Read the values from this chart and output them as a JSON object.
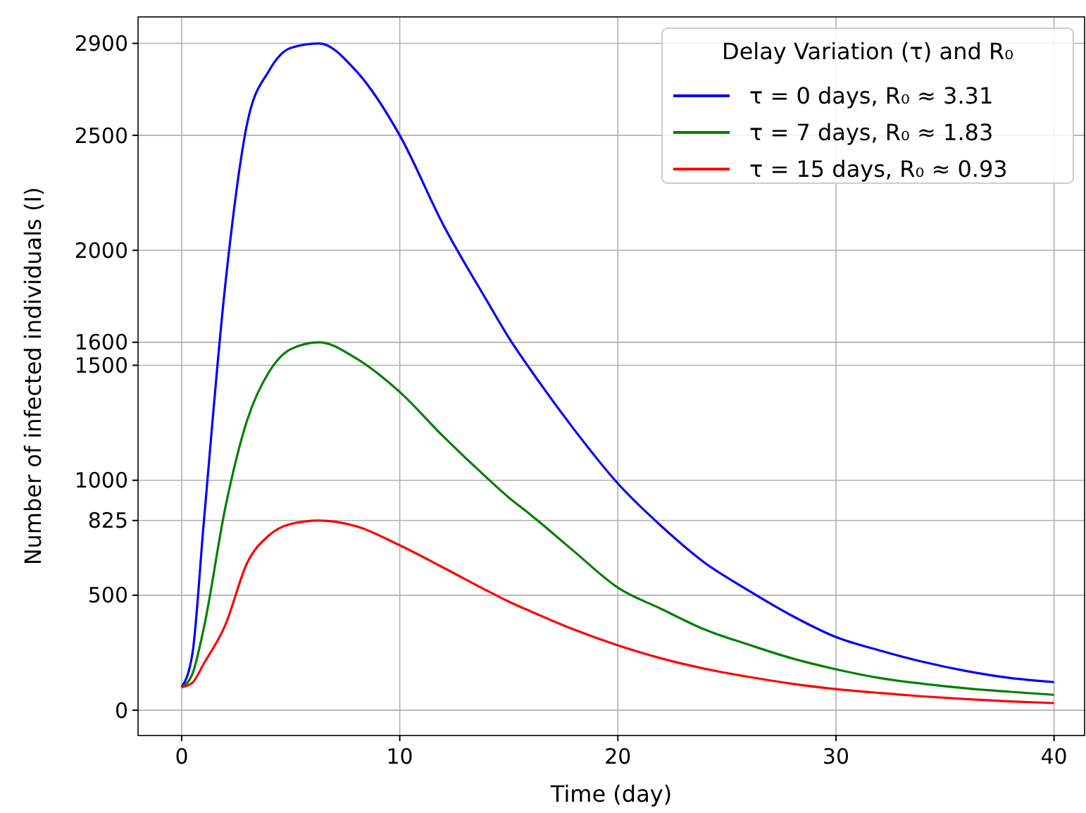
{
  "chart_data": {
    "type": "line",
    "xlabel": "Time (day)",
    "ylabel": "Number of infected individuals (I)",
    "legend_title": "Delay Variation (τ) and R₀",
    "legend": "top right",
    "grid": true,
    "xlim": [
      -2,
      41.4
    ],
    "xticks": [
      0,
      10,
      20,
      30,
      40
    ],
    "ylim": [
      -110,
      3015
    ],
    "yticks": [
      0,
      500,
      825,
      1000,
      1500,
      1600,
      2000,
      2500,
      2900
    ],
    "x": [
      0,
      0.5,
      1,
      2,
      3,
      4,
      5,
      6.3,
      8,
      10,
      12,
      14,
      15,
      16,
      18,
      20,
      22,
      24,
      26,
      28,
      30,
      32,
      34,
      36,
      38,
      40
    ],
    "series": [
      {
        "name": "τ = 0 days, R₀ ≈ 3.31",
        "color": "#0000ff",
        "values": [
          100,
          250,
          800,
          1850,
          2550,
          2780,
          2880,
          2900,
          2780,
          2500,
          2110,
          1780,
          1620,
          1480,
          1220,
          986,
          800,
          640,
          520,
          410,
          318,
          260,
          210,
          170,
          140,
          122
        ]
      },
      {
        "name": "τ = 7 days, R₀ ≈ 1.83",
        "color": "#008000",
        "values": [
          100,
          160,
          350,
          880,
          1260,
          1470,
          1570,
          1600,
          1530,
          1384,
          1190,
          1010,
          925,
          850,
          690,
          533,
          440,
          350,
          285,
          225,
          178,
          140,
          115,
          95,
          80,
          67
        ]
      },
      {
        "name": "τ = 15 days, R₀ ≈ 0.93",
        "color": "#ff0000",
        "values": [
          100,
          120,
          200,
          370,
          640,
          760,
          810,
          825,
          800,
          717,
          620,
          520,
          472,
          430,
          350,
          282,
          225,
          180,
          145,
          115,
          92,
          75,
          60,
          48,
          38,
          31
        ]
      }
    ]
  }
}
